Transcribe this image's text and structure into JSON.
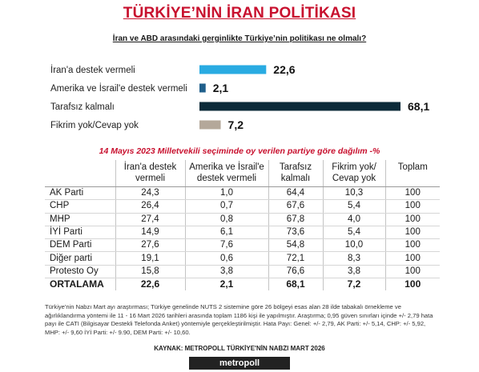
{
  "title": "TÜRKİYE’NİN İRAN POLİTİKASI",
  "question": "İran ve ABD arasındaki gerginlikte Türkiye’nin politikası ne olmalı?",
  "chart_data": {
    "type": "bar",
    "orientation": "horizontal",
    "categories": [
      "İran'a destek vermeli",
      "Amerika ve İsrail'e destek vermeli",
      "Tarafsız kalmalı",
      "Fikrim yok/Cevap yok"
    ],
    "values": [
      22.6,
      2.1,
      68.1,
      7.2
    ],
    "value_labels": [
      "22,6",
      "2,1",
      "68,1",
      "7,2"
    ],
    "colors": [
      "#29abe2",
      "#1f5f8b",
      "#0d2b3a",
      "#b4a89a"
    ],
    "xlim": [
      0,
      68.1
    ],
    "grid": false,
    "legend": "none"
  },
  "table": {
    "title": "14 Mayıs 2023 Milletvekili seçiminde oy verilen partiye göre dağılım -%",
    "headers": [
      "",
      "İran'a destek vermeli",
      "Amerika ve İsrail'e destek vermeli",
      "Tarafsız kalmalı",
      "Fikrim yok/ Cevap yok",
      "Toplam"
    ],
    "rows": [
      [
        "AK Parti",
        "24,3",
        "1,0",
        "64,4",
        "10,3",
        "100"
      ],
      [
        "CHP",
        "26,4",
        "0,7",
        "67,6",
        "5,4",
        "100"
      ],
      [
        "MHP",
        "27,4",
        "0,8",
        "67,8",
        "4,0",
        "100"
      ],
      [
        "İYİ Parti",
        "14,9",
        "6,1",
        "73,6",
        "5,4",
        "100"
      ],
      [
        "DEM Parti",
        "27,6",
        "7,6",
        "54,8",
        "10,0",
        "100"
      ],
      [
        "Diğer parti",
        "19,1",
        "0,6",
        "72,1",
        "8,3",
        "100"
      ],
      [
        "Protesto Oy",
        "15,8",
        "3,8",
        "76,6",
        "3,8",
        "100"
      ]
    ],
    "average": [
      "ORTALAMA",
      "22,6",
      "2,1",
      "68,1",
      "7,2",
      "100"
    ]
  },
  "footnote": "Türkiye'nin Nabzı Mart ayı araştırması; Türkiye genelinde NUTS 2 sistemine göre 26 bölgeyi esas alan 28 ilde tabakalı örnekleme ve ağırlıklandırma yöntemi ile 11 - 16 Mart 2026 tarihleri arasında toplam 1186 kişi ile yapılmıştır. Araştırma; 0,95 güven sınırları içinde +/- 2,79 hata payı ile CATI (Bilgisayar Destekli Telefonda Anket) yöntemiyle gerçekleştirilmiştir. Hata Payı: Genel: +/- 2,79, AK Parti: +/- 5,14, CHP: +/- 5,92, MHP: +/- 9,60 İYİ Parti: +/- 9.90, DEM Parti: +/- 10,60.",
  "source": "KAYNAK: METROPOLL TÜRKİYE'NİN NABZI MART 2026",
  "brand": "metropoll"
}
